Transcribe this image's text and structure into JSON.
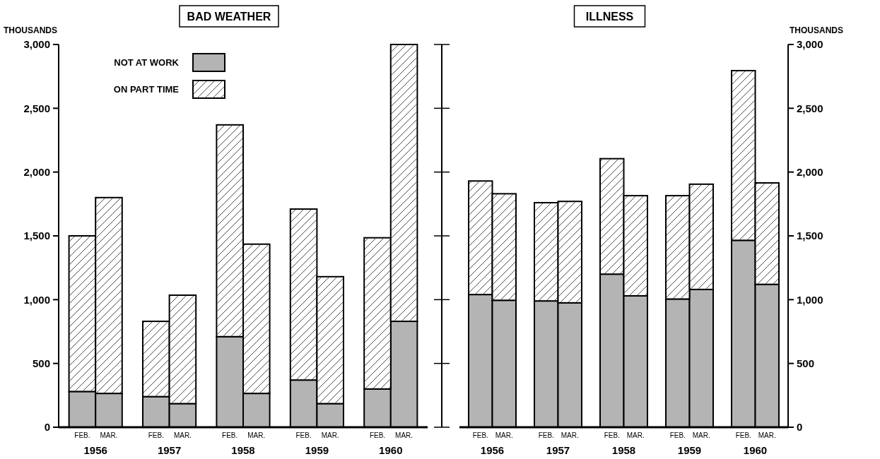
{
  "chart_data": [
    {
      "type": "bar",
      "title": "BAD WEATHER",
      "ylabel": "THOUSANDS",
      "stacked": true,
      "legend": "top left",
      "grid": false,
      "categories": [
        "FEB.",
        "MAR.",
        "FEB.",
        "MAR.",
        "FEB.",
        "MAR.",
        "FEB.",
        "MAR.",
        "FEB.",
        "MAR."
      ],
      "annotations": [
        "1956",
        "1957",
        "1958",
        "1959",
        "1960"
      ],
      "ylim": [
        0,
        3000
      ],
      "yticks": [
        {
          "value": 0,
          "label": "0"
        },
        {
          "value": 500,
          "label": "500"
        },
        {
          "value": 1000,
          "label": "1,000"
        },
        {
          "value": 1500,
          "label": "1,500"
        },
        {
          "value": 2000,
          "label": "2,000"
        },
        {
          "value": 2500,
          "label": "2,500"
        },
        {
          "value": 3000,
          "label": "3,000"
        }
      ],
      "series": [
        {
          "name": "NOT AT WORK",
          "color": "#b4b4b4",
          "values": [
            280,
            265,
            240,
            185,
            710,
            265,
            370,
            185,
            300,
            830
          ]
        },
        {
          "name": "ON PART TIME",
          "color": "#ffffff",
          "values": [
            1220,
            1535,
            590,
            850,
            1660,
            1170,
            1340,
            995,
            1185,
            2170
          ]
        }
      ]
    },
    {
      "type": "bar",
      "title": "ILLNESS",
      "ylabel": "THOUSANDS",
      "stacked": true,
      "legend": false,
      "grid": false,
      "categories": [
        "FEB.",
        "MAR.",
        "FEB.",
        "MAR.",
        "FEB.",
        "MAR.",
        "FEB.",
        "MAR.",
        "FEB.",
        "MAR."
      ],
      "annotations": [
        "1956",
        "1957",
        "1958",
        "1959",
        "1960"
      ],
      "ylim": [
        0,
        3000
      ],
      "yticks": [
        {
          "value": 0,
          "label": "0"
        },
        {
          "value": 500,
          "label": "500"
        },
        {
          "value": 1000,
          "label": "1,000"
        },
        {
          "value": 1500,
          "label": "1,500"
        },
        {
          "value": 2000,
          "label": "2,000"
        },
        {
          "value": 2500,
          "label": "2,500"
        },
        {
          "value": 3000,
          "label": "3,000"
        }
      ],
      "series": [
        {
          "color": "#b4b4b4",
          "values": [
            1040,
            995,
            990,
            975,
            1200,
            1030,
            1005,
            1080,
            1465,
            1120
          ]
        },
        {
          "color": "#ffffff",
          "values": [
            890,
            835,
            770,
            795,
            905,
            785,
            810,
            825,
            1330,
            795
          ]
        }
      ]
    }
  ]
}
